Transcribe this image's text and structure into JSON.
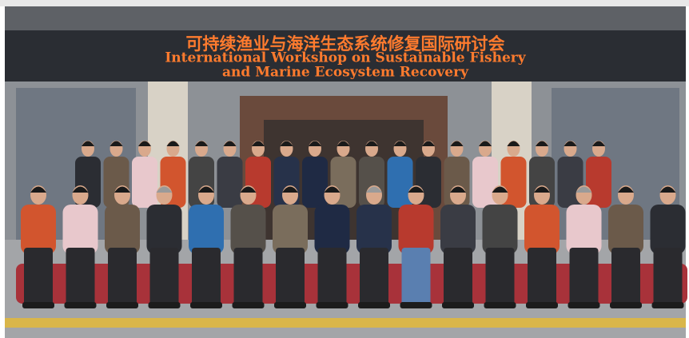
{
  "banner": {
    "chinese": "可持续渔业与海洋生态系统修复国际研讨会",
    "english_line1": "International Workshop on Sustainable Fishery",
    "english_line2": "and Marine Ecosystem Recovery"
  }
}
